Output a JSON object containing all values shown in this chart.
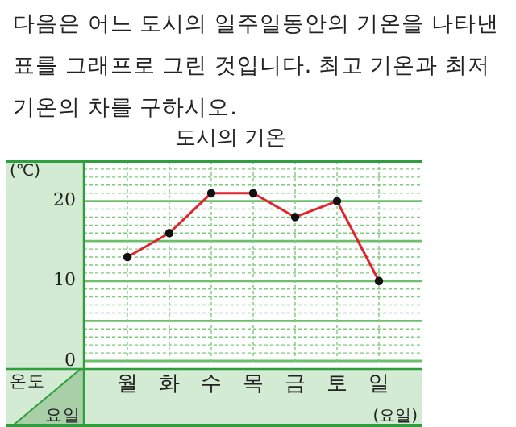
{
  "chart_data": {
    "type": "line",
    "title": "도시의 기온",
    "annotations": [
      "다음은 어느 도시의 일주일동안의 기온을 나타낸 표를 그래프로 그린 것입니다. 최고 기온과 최저 기온의 차를 구하시오.",
      "온도",
      "요일"
    ],
    "ylabel": "(℃)",
    "xlabel": "(요일)",
    "categories": [
      "월",
      "화",
      "수",
      "목",
      "금",
      "토",
      "일"
    ],
    "series": [
      {
        "color": "#e0252f",
        "values": [
          13,
          16,
          21,
          21,
          18,
          20,
          10
        ]
      }
    ],
    "ylim": [
      0,
      25
    ],
    "yticks": [
      0,
      {
        "value": 1,
        "label": null
      },
      {
        "value": 2,
        "label": null
      },
      {
        "value": 3,
        "label": null
      },
      {
        "value": 4,
        "label": null
      },
      {
        "value": 5,
        "label": null
      },
      {
        "value": 6,
        "label": null
      },
      {
        "value": 7,
        "label": null
      },
      {
        "value": 8,
        "label": null
      },
      {
        "value": 9,
        "label": null
      },
      10,
      {
        "value": 11,
        "label": null
      },
      {
        "value": 12,
        "label": null
      },
      {
        "value": 13,
        "label": null
      },
      {
        "value": 14,
        "label": null
      },
      {
        "value": 15,
        "label": null
      },
      {
        "value": 16,
        "label": null
      },
      {
        "value": 17,
        "label": null
      },
      {
        "value": 18,
        "label": null
      },
      {
        "value": 19,
        "label": null
      },
      20,
      {
        "value": 21,
        "label": null
      },
      {
        "value": 22,
        "label": null
      },
      {
        "value": 23,
        "label": null
      },
      {
        "value": 24,
        "label": null
      },
      {
        "value": 25,
        "label": null
      }
    ],
    "grid": true,
    "marker": "circle",
    "line_style": "solid"
  }
}
